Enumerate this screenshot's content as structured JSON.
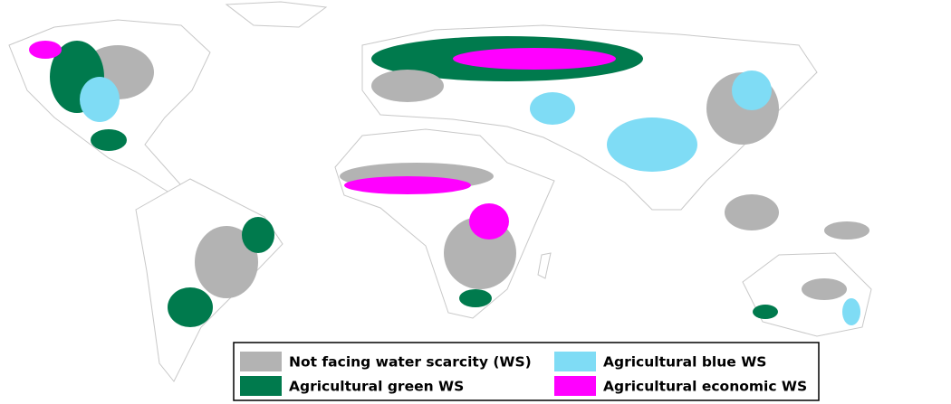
{
  "legend": {
    "items": [
      {
        "label": "Not facing water scarcity (WS)",
        "color": "#b3b3b3"
      },
      {
        "label": "Agricultural blue WS",
        "color": "#7fdcf5"
      },
      {
        "label": "Agricultural green WS",
        "color": "#007a4d"
      },
      {
        "label": "Agricultural economic WS",
        "color": "#ff00ff"
      }
    ]
  }
}
